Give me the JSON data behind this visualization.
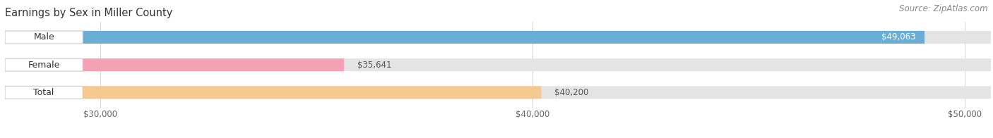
{
  "title": "Earnings by Sex in Miller County",
  "source": "Source: ZipAtlas.com",
  "categories": [
    "Male",
    "Female",
    "Total"
  ],
  "values": [
    49063,
    35641,
    40200
  ],
  "bar_colors": [
    "#6aaed6",
    "#f4a0b5",
    "#f5c990"
  ],
  "bar_bg_color": "#e4e4e4",
  "x_min": 30000,
  "x_max": 50000,
  "x_ticks": [
    30000,
    40000,
    50000
  ],
  "x_tick_labels": [
    "$30,000",
    "$40,000",
    "$50,000"
  ],
  "title_fontsize": 10.5,
  "source_fontsize": 8.5,
  "label_fontsize": 9,
  "value_fontsize": 8.5,
  "fig_bg": "#ffffff",
  "plot_bg": "#f0f0f0"
}
